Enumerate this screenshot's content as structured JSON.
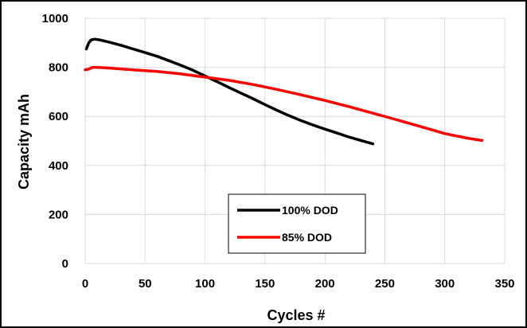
{
  "chart_data": {
    "type": "line",
    "title": "",
    "xlabel": "Cycles #",
    "ylabel": "Capacity  mAh",
    "xlim": [
      0,
      350
    ],
    "ylim": [
      0,
      1000
    ],
    "xticks": [
      "0",
      "50",
      "100",
      "150",
      "200",
      "250",
      "300",
      "350"
    ],
    "yticks": [
      "0",
      "200",
      "400",
      "600",
      "800",
      "1000"
    ],
    "grid": "horizontal and vertical",
    "legend_position": "center-bottom",
    "series": [
      {
        "name": "100% DOD",
        "color": "#000000",
        "x": [
          1,
          3,
          5,
          8,
          12,
          20,
          30,
          40,
          50,
          60,
          70,
          80,
          90,
          100,
          110,
          120,
          130,
          140,
          150,
          160,
          170,
          180,
          190,
          200,
          210,
          220,
          230,
          240
        ],
        "y": [
          875,
          900,
          912,
          915,
          912,
          903,
          890,
          875,
          860,
          845,
          827,
          808,
          788,
          765,
          742,
          718,
          695,
          672,
          648,
          625,
          603,
          583,
          565,
          548,
          532,
          516,
          502,
          488
        ]
      },
      {
        "name": "85% DOD",
        "color": "#ff0000",
        "x": [
          0,
          3,
          6,
          10,
          20,
          40,
          60,
          80,
          100,
          120,
          140,
          160,
          180,
          200,
          220,
          240,
          260,
          280,
          300,
          320,
          331
        ],
        "y": [
          790,
          793,
          800,
          800,
          797,
          790,
          783,
          773,
          760,
          747,
          730,
          710,
          688,
          665,
          640,
          613,
          586,
          558,
          530,
          510,
          502
        ]
      }
    ]
  }
}
